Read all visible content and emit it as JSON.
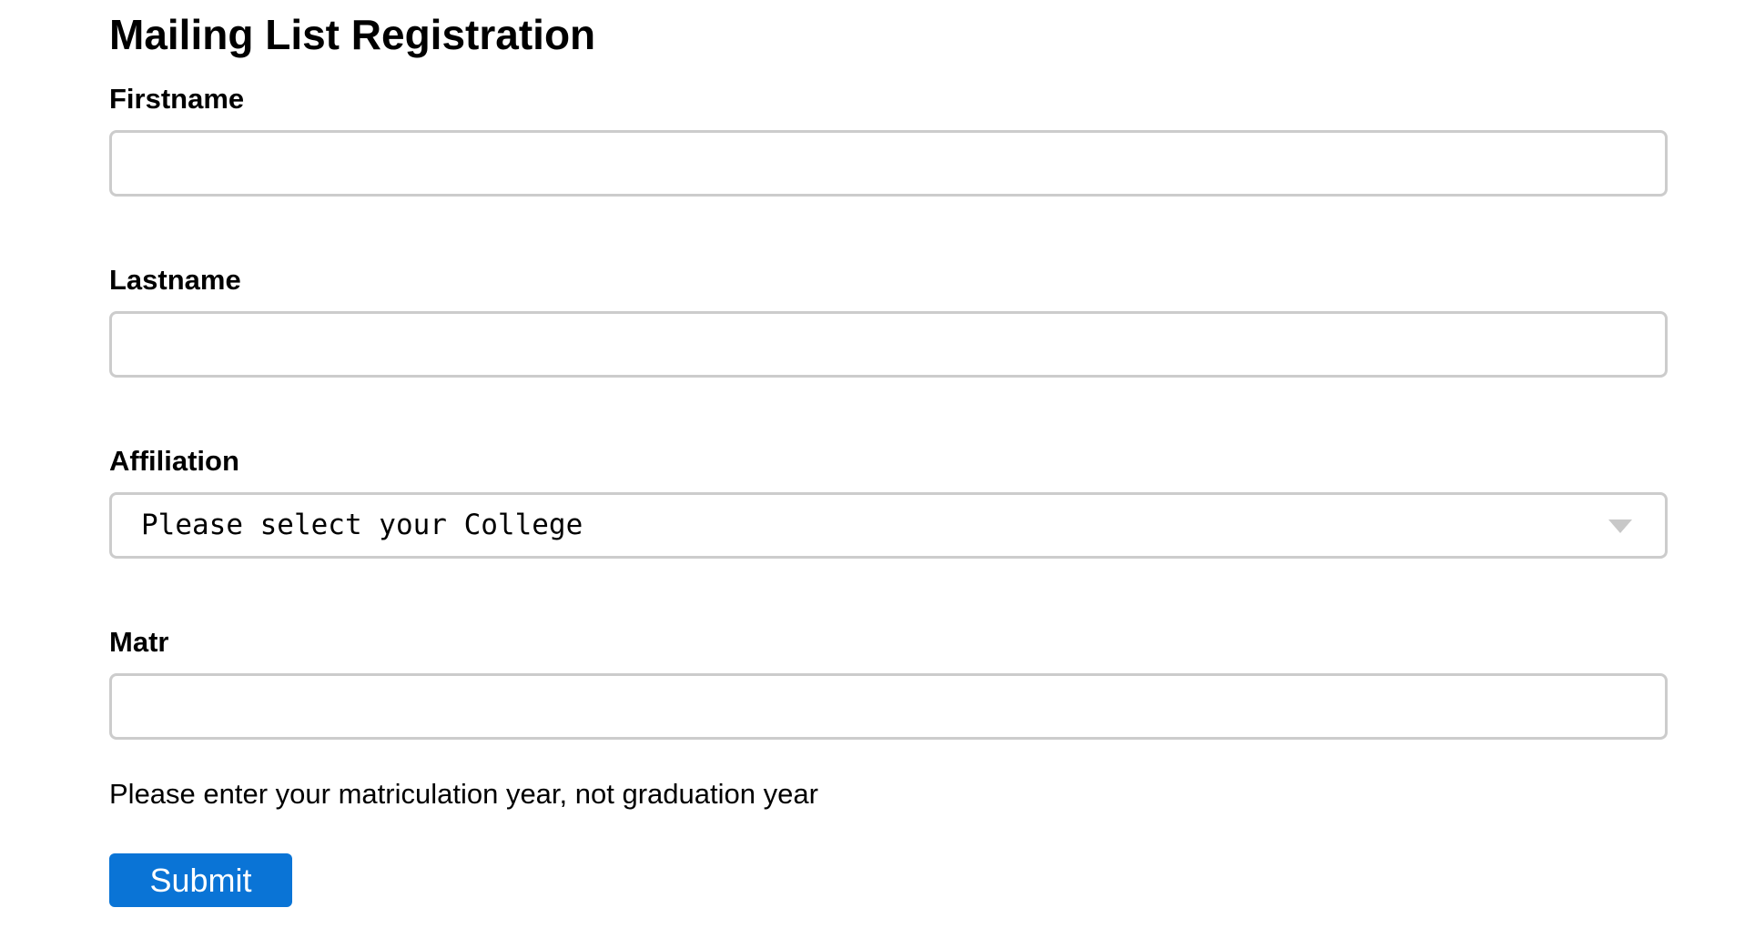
{
  "form": {
    "title": "Mailing List Registration",
    "firstname": {
      "label": "Firstname",
      "value": "",
      "placeholder": ""
    },
    "lastname": {
      "label": "Lastname",
      "value": "",
      "placeholder": ""
    },
    "affiliation": {
      "label": "Affiliation",
      "selected": "Please select your College",
      "icon": "chevron-down-icon"
    },
    "matr": {
      "label": "Matr",
      "value": "",
      "placeholder": ""
    },
    "matr_help": "Please enter your matriculation year, not graduation year",
    "submit_label": "Submit",
    "colors": {
      "submit_bg": "#0a74d6",
      "submit_text": "#ffffff",
      "field_border": "#cccccc"
    }
  }
}
